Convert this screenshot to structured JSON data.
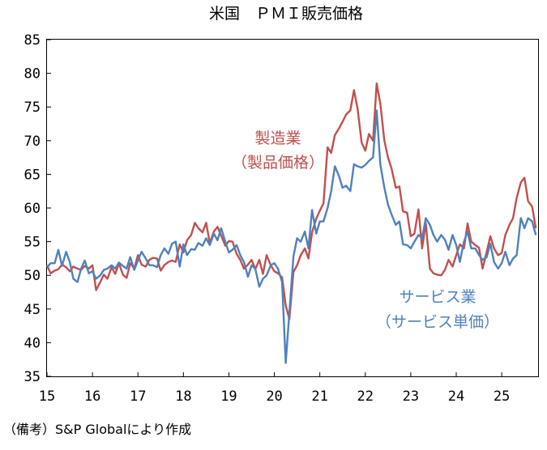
{
  "chart_data": {
    "type": "line",
    "title": "米国　ＰＭＩ販売価格",
    "xlabel": "",
    "ylabel": "",
    "xlim": [
      15,
      25.8
    ],
    "ylim": [
      35,
      85
    ],
    "yticks": [
      35,
      40,
      45,
      50,
      55,
      60,
      65,
      70,
      75,
      80,
      85
    ],
    "xticks": [
      "15",
      "16",
      "17",
      "18",
      "19",
      "20",
      "21",
      "22",
      "23",
      "24",
      "25"
    ],
    "grid": false,
    "source_note": "（備考）S&P Globalにより作成",
    "series": [
      {
        "name": "製造業（製品価格）",
        "label_lines": [
          "製造業",
          "（製品価格）"
        ],
        "color": "#c0504d",
        "points": [
          [
            15.0,
            51.5
          ],
          [
            15.08,
            50.3
          ],
          [
            15.17,
            50.7
          ],
          [
            15.25,
            50.9
          ],
          [
            15.33,
            51.6
          ],
          [
            15.42,
            51.2
          ],
          [
            15.5,
            50.6
          ],
          [
            15.58,
            51.3
          ],
          [
            15.67,
            51.0
          ],
          [
            15.75,
            50.8
          ],
          [
            15.83,
            51.4
          ],
          [
            15.92,
            51.0
          ],
          [
            16.0,
            51.5
          ],
          [
            16.08,
            47.8
          ],
          [
            16.17,
            49.0
          ],
          [
            16.25,
            50.1
          ],
          [
            16.33,
            49.5
          ],
          [
            16.42,
            51.2
          ],
          [
            16.5,
            50.2
          ],
          [
            16.58,
            51.8
          ],
          [
            16.67,
            50.1
          ],
          [
            16.75,
            49.6
          ],
          [
            16.83,
            51.8
          ],
          [
            16.92,
            51.0
          ],
          [
            17.0,
            53.0
          ],
          [
            17.08,
            51.6
          ],
          [
            17.17,
            51.3
          ],
          [
            17.25,
            52.3
          ],
          [
            17.33,
            52.6
          ],
          [
            17.42,
            52.5
          ],
          [
            17.5,
            50.7
          ],
          [
            17.58,
            51.5
          ],
          [
            17.67,
            52.0
          ],
          [
            17.75,
            52.2
          ],
          [
            17.83,
            52.0
          ],
          [
            17.92,
            54.6
          ],
          [
            18.0,
            53.4
          ],
          [
            18.08,
            55.2
          ],
          [
            18.17,
            56.0
          ],
          [
            18.25,
            57.8
          ],
          [
            18.33,
            57.0
          ],
          [
            18.42,
            56.4
          ],
          [
            18.5,
            57.8
          ],
          [
            18.58,
            54.8
          ],
          [
            18.67,
            56.5
          ],
          [
            18.75,
            57.2
          ],
          [
            18.83,
            55.9
          ],
          [
            18.92,
            54.4
          ],
          [
            19.0,
            55.1
          ],
          [
            19.08,
            55.0
          ],
          [
            19.17,
            53.2
          ],
          [
            19.25,
            52.3
          ],
          [
            19.33,
            51.0
          ],
          [
            19.42,
            51.6
          ],
          [
            19.5,
            52.3
          ],
          [
            19.58,
            50.9
          ],
          [
            19.67,
            52.3
          ],
          [
            19.75,
            50.2
          ],
          [
            19.83,
            53.0
          ],
          [
            19.92,
            51.5
          ],
          [
            20.0,
            50.6
          ],
          [
            20.08,
            50.3
          ],
          [
            20.17,
            49.7
          ],
          [
            20.25,
            45.5
          ],
          [
            20.33,
            43.5
          ],
          [
            20.42,
            50.5
          ],
          [
            20.5,
            51.5
          ],
          [
            20.58,
            53.0
          ],
          [
            20.67,
            54.0
          ],
          [
            20.75,
            52.5
          ],
          [
            20.83,
            56.4
          ],
          [
            20.92,
            58.4
          ],
          [
            21.0,
            59.6
          ],
          [
            21.08,
            60.7
          ],
          [
            21.17,
            69.0
          ],
          [
            21.25,
            68.2
          ],
          [
            21.33,
            70.8
          ],
          [
            21.42,
            71.8
          ],
          [
            21.5,
            72.8
          ],
          [
            21.58,
            73.9
          ],
          [
            21.67,
            74.5
          ],
          [
            21.75,
            77.5
          ],
          [
            21.83,
            74.8
          ],
          [
            21.92,
            69.7
          ],
          [
            22.0,
            68.5
          ],
          [
            22.08,
            71.0
          ],
          [
            22.17,
            70.0
          ],
          [
            22.25,
            78.5
          ],
          [
            22.33,
            75.5
          ],
          [
            22.42,
            70.0
          ],
          [
            22.5,
            67.5
          ],
          [
            22.58,
            65.8
          ],
          [
            22.67,
            63.0
          ],
          [
            22.75,
            63.2
          ],
          [
            22.83,
            59.5
          ],
          [
            22.92,
            59.3
          ],
          [
            23.0,
            55.8
          ],
          [
            23.08,
            56.2
          ],
          [
            23.17,
            59.8
          ],
          [
            23.25,
            54.0
          ],
          [
            23.33,
            57.8
          ],
          [
            23.42,
            51.0
          ],
          [
            23.5,
            50.3
          ],
          [
            23.58,
            50.1
          ],
          [
            23.67,
            50.0
          ],
          [
            23.75,
            50.8
          ],
          [
            23.83,
            52.3
          ],
          [
            23.92,
            51.3
          ],
          [
            24.0,
            53.0
          ],
          [
            24.08,
            54.6
          ],
          [
            24.17,
            54.0
          ],
          [
            24.25,
            57.7
          ],
          [
            24.33,
            55.0
          ],
          [
            24.42,
            54.5
          ],
          [
            24.5,
            54.1
          ],
          [
            24.58,
            51.0
          ],
          [
            24.67,
            53.5
          ],
          [
            24.75,
            55.8
          ],
          [
            24.83,
            54.0
          ],
          [
            24.92,
            53.0
          ],
          [
            25.0,
            53.3
          ],
          [
            25.08,
            56.0
          ],
          [
            25.17,
            57.5
          ],
          [
            25.25,
            58.5
          ],
          [
            25.33,
            61.5
          ],
          [
            25.42,
            63.8
          ],
          [
            25.5,
            64.5
          ],
          [
            25.58,
            61.0
          ],
          [
            25.67,
            60.2
          ],
          [
            25.75,
            57.0
          ]
        ]
      },
      {
        "name": "サービス業（サービス単価）",
        "label_lines": [
          "サービス業",
          "（サービス単価）"
        ],
        "color": "#4f81bd",
        "points": [
          [
            15.0,
            51.2
          ],
          [
            15.08,
            51.8
          ],
          [
            15.17,
            51.8
          ],
          [
            15.25,
            53.8
          ],
          [
            15.33,
            51.4
          ],
          [
            15.42,
            53.5
          ],
          [
            15.5,
            52.0
          ],
          [
            15.58,
            49.5
          ],
          [
            15.67,
            49.0
          ],
          [
            15.75,
            51.0
          ],
          [
            15.83,
            52.2
          ],
          [
            15.92,
            50.3
          ],
          [
            16.0,
            50.6
          ],
          [
            16.08,
            49.5
          ],
          [
            16.17,
            50.0
          ],
          [
            16.25,
            50.8
          ],
          [
            16.33,
            51.0
          ],
          [
            16.42,
            51.5
          ],
          [
            16.5,
            51.0
          ],
          [
            16.58,
            51.9
          ],
          [
            16.67,
            51.4
          ],
          [
            16.75,
            51.0
          ],
          [
            16.83,
            52.7
          ],
          [
            16.92,
            50.8
          ],
          [
            17.0,
            52.2
          ],
          [
            17.08,
            53.5
          ],
          [
            17.17,
            52.5
          ],
          [
            17.25,
            51.5
          ],
          [
            17.33,
            51.5
          ],
          [
            17.42,
            51.2
          ],
          [
            17.5,
            53.0
          ],
          [
            17.58,
            54.0
          ],
          [
            17.67,
            53.2
          ],
          [
            17.75,
            54.7
          ],
          [
            17.83,
            55.0
          ],
          [
            17.92,
            51.3
          ],
          [
            18.0,
            54.6
          ],
          [
            18.08,
            53.0
          ],
          [
            18.17,
            53.9
          ],
          [
            18.25,
            53.8
          ],
          [
            18.33,
            54.8
          ],
          [
            18.42,
            54.4
          ],
          [
            18.5,
            55.5
          ],
          [
            18.58,
            54.5
          ],
          [
            18.67,
            56.2
          ],
          [
            18.75,
            55.2
          ],
          [
            18.83,
            57.0
          ],
          [
            18.92,
            55.0
          ],
          [
            19.0,
            53.4
          ],
          [
            19.08,
            53.8
          ],
          [
            19.17,
            54.5
          ],
          [
            19.25,
            53.0
          ],
          [
            19.33,
            52.0
          ],
          [
            19.42,
            49.8
          ],
          [
            19.5,
            51.5
          ],
          [
            19.58,
            51.0
          ],
          [
            19.67,
            48.3
          ],
          [
            19.75,
            49.5
          ],
          [
            19.83,
            50.0
          ],
          [
            19.92,
            51.5
          ],
          [
            20.0,
            51.8
          ],
          [
            20.08,
            51.0
          ],
          [
            20.17,
            49.0
          ],
          [
            20.25,
            37.0
          ],
          [
            20.33,
            44.5
          ],
          [
            20.42,
            52.8
          ],
          [
            20.5,
            55.5
          ],
          [
            20.58,
            55.0
          ],
          [
            20.67,
            56.5
          ],
          [
            20.75,
            54.0
          ],
          [
            20.83,
            59.7
          ],
          [
            20.92,
            56.2
          ],
          [
            21.0,
            58.0
          ],
          [
            21.08,
            58.0
          ],
          [
            21.17,
            60.0
          ],
          [
            21.25,
            62.5
          ],
          [
            21.33,
            66.2
          ],
          [
            21.42,
            64.8
          ],
          [
            21.5,
            63.0
          ],
          [
            21.58,
            63.3
          ],
          [
            21.67,
            62.5
          ],
          [
            21.75,
            66.5
          ],
          [
            21.83,
            66.2
          ],
          [
            21.92,
            66.0
          ],
          [
            22.0,
            66.4
          ],
          [
            22.08,
            67.0
          ],
          [
            22.17,
            67.5
          ],
          [
            22.25,
            74.5
          ],
          [
            22.33,
            66.5
          ],
          [
            22.42,
            63.0
          ],
          [
            22.5,
            60.5
          ],
          [
            22.58,
            59.0
          ],
          [
            22.67,
            57.5
          ],
          [
            22.75,
            58.0
          ],
          [
            22.83,
            54.6
          ],
          [
            22.92,
            54.5
          ],
          [
            23.0,
            54.0
          ],
          [
            23.08,
            55.0
          ],
          [
            23.17,
            56.0
          ],
          [
            23.25,
            55.5
          ],
          [
            23.33,
            58.5
          ],
          [
            23.42,
            57.5
          ],
          [
            23.5,
            56.0
          ],
          [
            23.58,
            55.0
          ],
          [
            23.67,
            56.0
          ],
          [
            23.75,
            55.3
          ],
          [
            23.83,
            53.8
          ],
          [
            23.92,
            56.0
          ],
          [
            24.0,
            54.5
          ],
          [
            24.08,
            52.0
          ],
          [
            24.17,
            55.0
          ],
          [
            24.25,
            56.5
          ],
          [
            24.33,
            54.0
          ],
          [
            24.42,
            54.0
          ],
          [
            24.5,
            53.0
          ],
          [
            24.58,
            52.3
          ],
          [
            24.67,
            52.7
          ],
          [
            24.75,
            54.7
          ],
          [
            24.83,
            52.0
          ],
          [
            24.92,
            51.0
          ],
          [
            25.0,
            51.8
          ],
          [
            25.08,
            53.5
          ],
          [
            25.17,
            51.5
          ],
          [
            25.25,
            52.5
          ],
          [
            25.33,
            53.0
          ],
          [
            25.42,
            58.5
          ],
          [
            25.5,
            57.0
          ],
          [
            25.58,
            58.5
          ],
          [
            25.67,
            58.0
          ],
          [
            25.75,
            56.0
          ]
        ]
      }
    ]
  }
}
